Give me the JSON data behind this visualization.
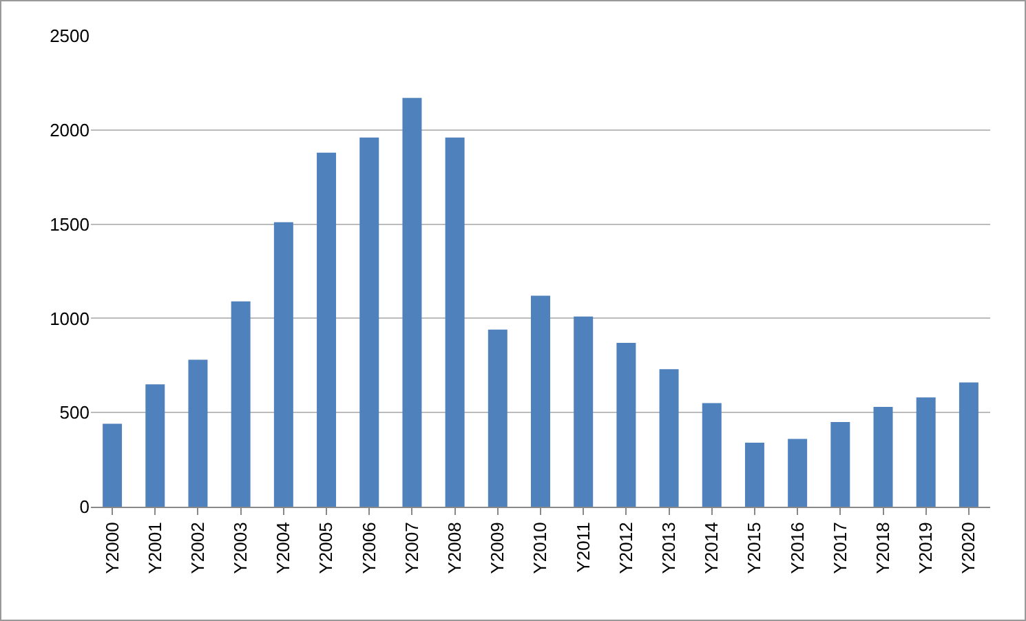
{
  "chart_data": {
    "type": "bar",
    "categories": [
      "Y2000",
      "Y2001",
      "Y2002",
      "Y2003",
      "Y2004",
      "Y2005",
      "Y2006",
      "Y2007",
      "Y2008",
      "Y2009",
      "Y2010",
      "Y2011",
      "Y2012",
      "Y2013",
      "Y2014",
      "Y2015",
      "Y2016",
      "Y2017",
      "Y2018",
      "Y2019",
      "Y2020"
    ],
    "values": [
      440,
      650,
      780,
      1090,
      1510,
      1880,
      1960,
      2170,
      1960,
      940,
      1120,
      1010,
      870,
      730,
      550,
      340,
      360,
      450,
      530,
      580,
      660
    ],
    "color": "#4f81bd",
    "ylim": [
      0,
      2500
    ],
    "yticks": [
      0,
      500,
      1000,
      1500,
      2000,
      2500
    ],
    "grid": "y",
    "legend": false
  }
}
